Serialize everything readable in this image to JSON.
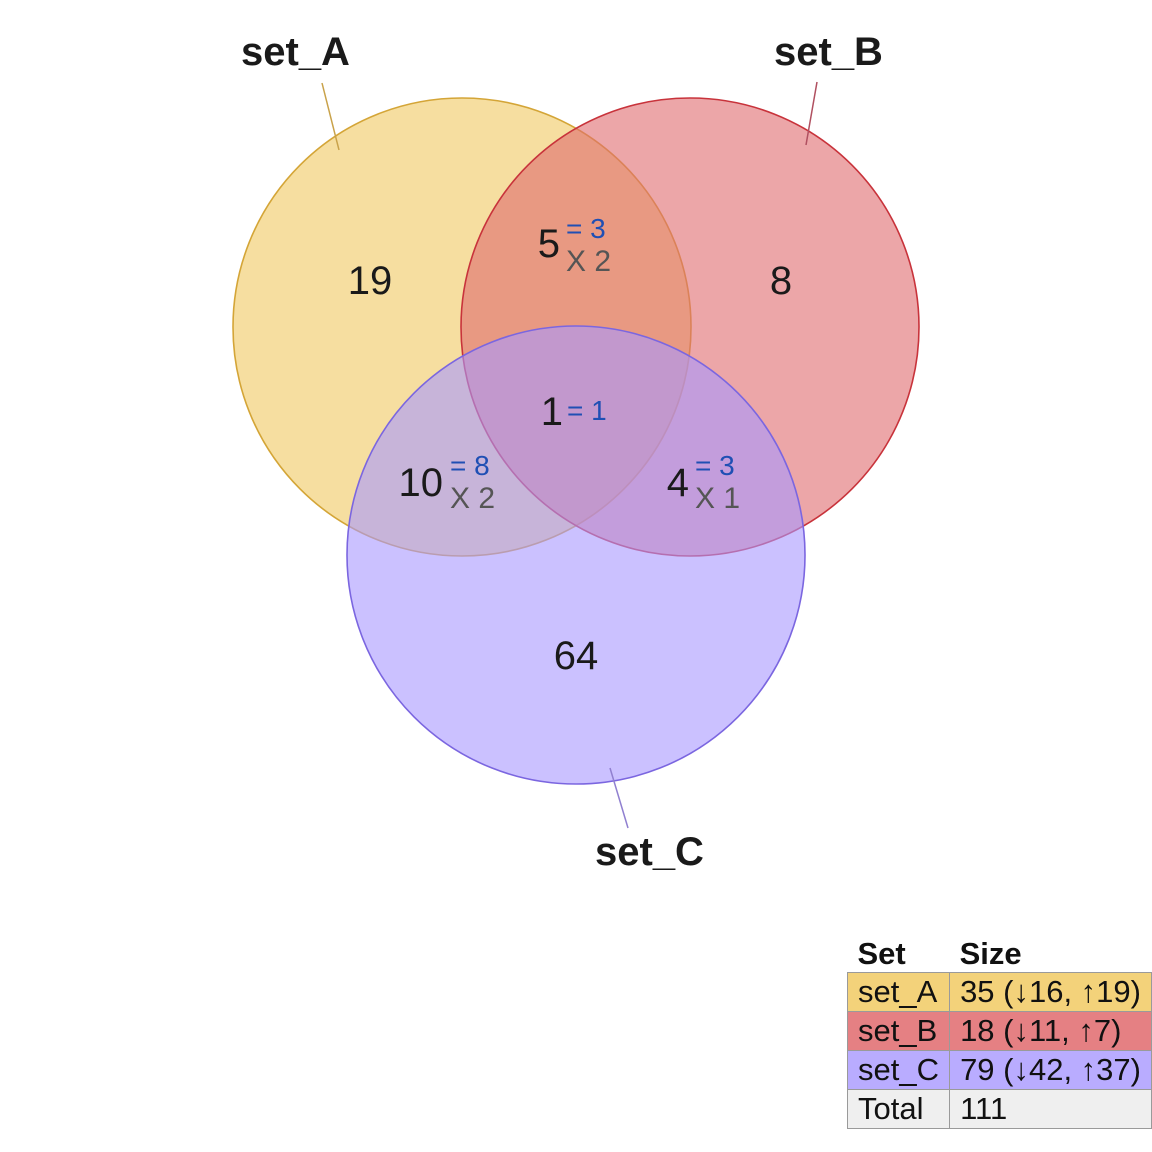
{
  "sets": [
    {
      "name": "set_A",
      "color": "#f0c860",
      "stroke": "#d4a537",
      "line": "#c9a24a"
    },
    {
      "name": "set_B",
      "color": "#e06a6e",
      "stroke": "#c8333b",
      "line": "#b05060"
    },
    {
      "name": "set_C",
      "color": "#a998ff",
      "stroke": "#7b66e0",
      "line": "#9080d0"
    }
  ],
  "regions": {
    "a_only": {
      "count": "19"
    },
    "b_only": {
      "count": "8"
    },
    "c_only": {
      "count": "64"
    },
    "ab_only": {
      "count": "5",
      "eq": "= 3",
      "dup": "X 2"
    },
    "ac_only": {
      "count": "10",
      "eq": "= 8",
      "dup": "X 2"
    },
    "bc_only": {
      "count": "4",
      "eq": "= 3",
      "dup": "X 1"
    },
    "abc": {
      "count": "1",
      "eq": "= 1"
    }
  },
  "table": {
    "header": {
      "set": "Set",
      "size": "Size"
    },
    "rows": [
      {
        "set": "set_A",
        "size": "35 (↓16, ↑19)",
        "color": "#f3d27a"
      },
      {
        "set": "set_B",
        "size": "18 (↓11, ↑7)",
        "color": "#e58083"
      },
      {
        "set": "set_C",
        "size": "79 (↓42, ↑37)",
        "color": "#b9acff"
      },
      {
        "set": "Total",
        "size": "111",
        "color": "#efefef"
      }
    ]
  }
}
